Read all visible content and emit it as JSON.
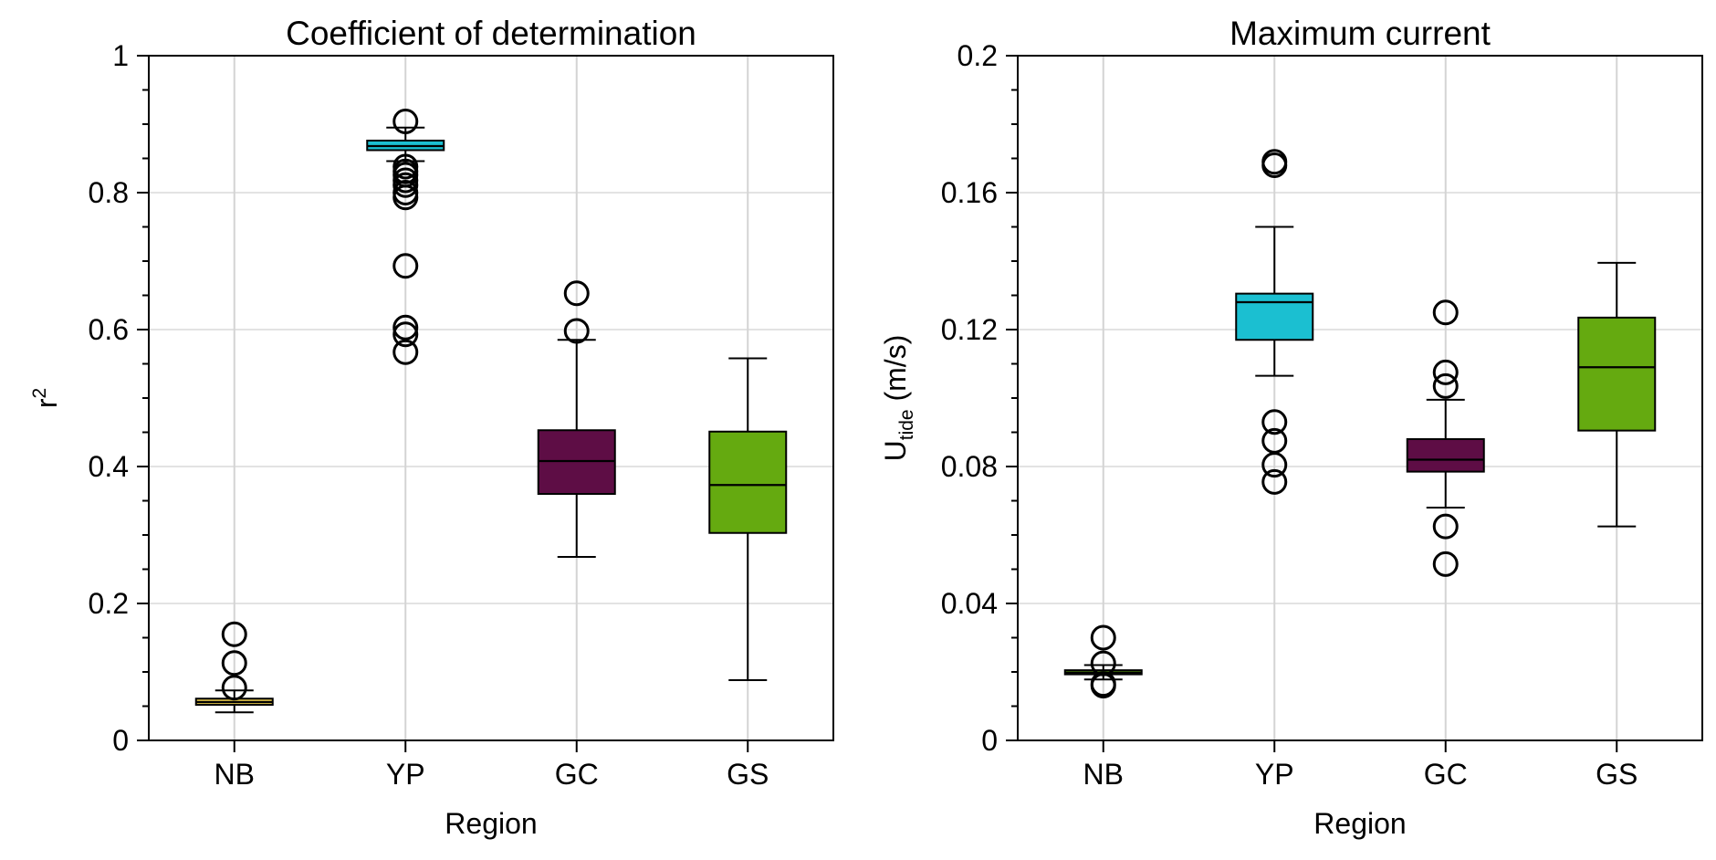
{
  "chart_data": [
    {
      "type": "box",
      "title": "Coefficient of determination",
      "xlabel": "Region",
      "ylabel": {
        "main": "r",
        "sup": "2",
        "rest": ""
      },
      "categories": [
        "NB",
        "YP",
        "GC",
        "GS"
      ],
      "ylim": [
        0,
        1
      ],
      "yticks": [
        0,
        0.2,
        0.4,
        0.6,
        0.8,
        1
      ],
      "ytick_labels": [
        "0",
        "0.2",
        "0.4",
        "0.6",
        "0.8",
        "1"
      ],
      "minor_tick_step": 0.05,
      "grid": true,
      "boxes": [
        {
          "category": "NB",
          "color": "#e0c24a",
          "whisker_low": 0.041,
          "q1": 0.052,
          "median": 0.056,
          "q3": 0.061,
          "whisker_high": 0.073,
          "outliers": [
            0.155,
            0.113,
            0.077
          ]
        },
        {
          "category": "YP",
          "color": "#1bbfd1",
          "whisker_low": 0.846,
          "q1": 0.862,
          "median": 0.868,
          "q3": 0.876,
          "whisker_high": 0.895,
          "outliers": [
            0.904,
            0.838,
            0.831,
            0.826,
            0.818,
            0.811,
            0.8,
            0.793,
            0.693,
            0.603,
            0.593,
            0.567
          ]
        },
        {
          "category": "GC",
          "color": "#5e0d45",
          "whisker_low": 0.268,
          "q1": 0.36,
          "median": 0.408,
          "q3": 0.453,
          "whisker_high": 0.585,
          "outliers": [
            0.653,
            0.598
          ]
        },
        {
          "category": "GS",
          "color": "#65aa10",
          "whisker_low": 0.088,
          "q1": 0.303,
          "median": 0.373,
          "q3": 0.451,
          "whisker_high": 0.558,
          "outliers": []
        }
      ]
    },
    {
      "type": "box",
      "title": "Maximum current",
      "xlabel": "Region",
      "ylabel": {
        "main": "U",
        "sub": "tide",
        "rest": " (m/s)"
      },
      "categories": [
        "NB",
        "YP",
        "GC",
        "GS"
      ],
      "ylim": [
        0,
        0.2
      ],
      "yticks": [
        0,
        0.04,
        0.08,
        0.12,
        0.16,
        0.2
      ],
      "ytick_labels": [
        "0",
        "0.04",
        "0.08",
        "0.12",
        "0.16",
        "0.2"
      ],
      "minor_tick_step": 0.01,
      "grid": true,
      "boxes": [
        {
          "category": "NB",
          "color": "#65aa10",
          "whisker_low": 0.0178,
          "q1": 0.0193,
          "median": 0.0198,
          "q3": 0.0205,
          "whisker_high": 0.022,
          "outliers": [
            0.03,
            0.0225,
            0.0165,
            0.016
          ]
        },
        {
          "category": "YP",
          "color": "#1bbfd1",
          "whisker_low": 0.1065,
          "q1": 0.117,
          "median": 0.128,
          "q3": 0.1305,
          "whisker_high": 0.15,
          "outliers": [
            0.169,
            0.168,
            0.093,
            0.0875,
            0.0805,
            0.0755
          ]
        },
        {
          "category": "GC",
          "color": "#5e0d45",
          "whisker_low": 0.068,
          "q1": 0.0785,
          "median": 0.082,
          "q3": 0.088,
          "whisker_high": 0.0995,
          "outliers": [
            0.125,
            0.1075,
            0.1035,
            0.0625,
            0.0515
          ]
        },
        {
          "category": "GS",
          "color": "#65aa10",
          "whisker_low": 0.0625,
          "q1": 0.0905,
          "median": 0.109,
          "q3": 0.1235,
          "whisker_high": 0.1395,
          "outliers": []
        }
      ]
    }
  ]
}
